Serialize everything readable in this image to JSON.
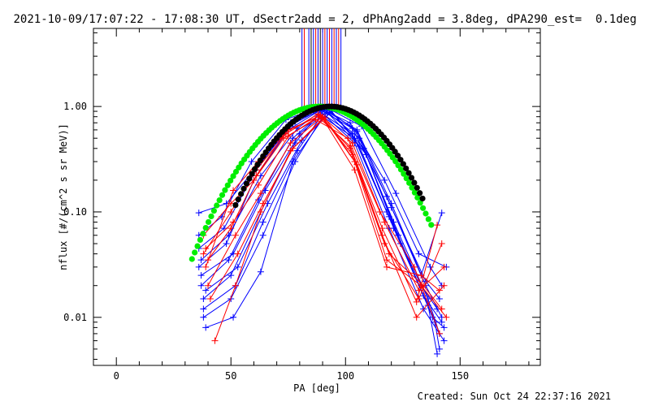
{
  "header": {
    "title": "2021-10-09/17:07:22 - 17:08:30 UT, dSectr2add = 2, dPhAng2add = 3.8deg, dPA290_est=  0.1deg"
  },
  "footer": {
    "created": "Created: Sun Oct 24 22:37:16 2021"
  },
  "chart_data": {
    "type": "line",
    "xlabel": "PA [deg]",
    "ylabel": "nflux [#/(cm^2 s sr MeV)]",
    "xlim": [
      -10,
      185
    ],
    "ylim": [
      0.0035,
      5.5
    ],
    "yscale": "log",
    "xticks": [
      0,
      50,
      100,
      150
    ],
    "xtick_labels": [
      "0",
      "50",
      "100",
      "150"
    ],
    "yticks": [
      0.01,
      0.1,
      1.0
    ],
    "ytick_labels": [
      "0.01",
      "0.10",
      "1.00"
    ],
    "grid": false,
    "colors": {
      "blue": "#0000ff",
      "red": "#ff0000",
      "green": "#00ee00",
      "black": "#000000"
    },
    "model_curves": [
      {
        "color": "#00ee00",
        "marker": "circle",
        "center": 88.5,
        "sigma": 21.5,
        "peak": 1.0,
        "x_range": [
          33,
          138
        ]
      },
      {
        "color": "#000000",
        "marker": "circle",
        "center": 93.5,
        "sigma": 20.0,
        "peak": 1.0,
        "x_range": [
          52,
          134
        ]
      }
    ],
    "vertical_lines": [
      {
        "x": 81,
        "color": "#0000ff"
      },
      {
        "x": 82,
        "color": "#ff0000"
      },
      {
        "x": 84,
        "color": "#0000ff"
      },
      {
        "x": 85,
        "color": "#000000"
      },
      {
        "x": 86,
        "color": "#0000ff"
      },
      {
        "x": 87,
        "color": "#ff0000"
      },
      {
        "x": 88,
        "color": "#0000ff"
      },
      {
        "x": 89,
        "color": "#000000"
      },
      {
        "x": 90,
        "color": "#0000ff"
      },
      {
        "x": 91,
        "color": "#ff0000"
      },
      {
        "x": 92,
        "color": "#0000ff"
      },
      {
        "x": 93,
        "color": "#ff0000"
      },
      {
        "x": 94,
        "color": "#0000ff"
      },
      {
        "x": 95,
        "color": "#ff0000"
      },
      {
        "x": 96,
        "color": "#0000ff"
      },
      {
        "x": 97,
        "color": "#ff0000"
      },
      {
        "x": 98,
        "color": "#0000ff"
      }
    ],
    "series": [
      {
        "color": "#0000ff",
        "marker": "+",
        "x": [
          36,
          48,
          60,
          75,
          90,
          105,
          120,
          135,
          142
        ],
        "y": [
          0.03,
          0.05,
          0.2,
          0.6,
          0.95,
          0.6,
          0.12,
          0.02,
          0.01
        ]
      },
      {
        "color": "#0000ff",
        "marker": "+",
        "x": [
          37,
          49,
          62,
          77,
          91,
          106,
          121,
          136,
          141
        ],
        "y": [
          0.02,
          0.035,
          0.13,
          0.5,
          0.92,
          0.5,
          0.08,
          0.015,
          0.007
        ]
      },
      {
        "color": "#0000ff",
        "marker": "+",
        "x": [
          38,
          50,
          63,
          78,
          89,
          104,
          119,
          134,
          143
        ],
        "y": [
          0.015,
          0.025,
          0.1,
          0.45,
          0.9,
          0.45,
          0.07,
          0.012,
          0.006
        ]
      },
      {
        "color": "#0000ff",
        "marker": "+",
        "x": [
          36,
          47,
          61,
          76,
          92,
          107,
          122,
          137,
          142
        ],
        "y": [
          0.045,
          0.07,
          0.25,
          0.7,
          0.97,
          0.65,
          0.15,
          0.03,
          0.02
        ]
      },
      {
        "color": "#0000ff",
        "marker": "+",
        "x": [
          38,
          52,
          64,
          79,
          90,
          103,
          118,
          133,
          140
        ],
        "y": [
          0.012,
          0.02,
          0.08,
          0.38,
          0.85,
          0.55,
          0.1,
          0.02,
          0.012
        ]
      },
      {
        "color": "#0000ff",
        "marker": "+",
        "x": [
          37,
          51,
          65,
          80,
          93,
          108,
          123,
          138,
          143
        ],
        "y": [
          0.025,
          0.04,
          0.16,
          0.55,
          0.94,
          0.4,
          0.06,
          0.01,
          0.008
        ]
      },
      {
        "color": "#0000ff",
        "marker": "+",
        "x": [
          39,
          53,
          66,
          81,
          94,
          109,
          124,
          139,
          141
        ],
        "y": [
          0.018,
          0.03,
          0.12,
          0.48,
          0.9,
          0.35,
          0.05,
          0.009,
          0.005
        ]
      },
      {
        "color": "#0000ff",
        "marker": "+",
        "x": [
          36,
          46,
          59,
          74,
          88,
          102,
          117,
          132,
          144
        ],
        "y": [
          0.06,
          0.09,
          0.3,
          0.75,
          0.98,
          0.7,
          0.2,
          0.04,
          0.03
        ]
      },
      {
        "color": "#0000ff",
        "marker": "+",
        "x": [
          38,
          50,
          64,
          78,
          90,
          104,
          119,
          134,
          142
        ],
        "y": [
          0.01,
          0.015,
          0.06,
          0.3,
          0.8,
          0.5,
          0.09,
          0.016,
          0.009
        ]
      },
      {
        "color": "#0000ff",
        "marker": "+",
        "x": [
          37,
          49,
          63,
          79,
          91,
          105,
          120,
          135,
          141
        ],
        "y": [
          0.035,
          0.06,
          0.22,
          0.62,
          0.96,
          0.58,
          0.11,
          0.022,
          0.015
        ]
      },
      {
        "color": "#0000ff",
        "marker": "+",
        "x": [
          36,
          48,
          62,
          77,
          89,
          103,
          118,
          133,
          142
        ],
        "y": [
          0.098,
          0.12,
          0.28,
          0.68,
          0.93,
          0.62,
          0.14,
          0.025,
          0.098
        ]
      },
      {
        "color": "#0000ff",
        "marker": "+",
        "x": [
          39,
          51,
          63,
          77,
          92,
          106,
          121,
          136,
          140
        ],
        "y": [
          0.008,
          0.01,
          0.027,
          0.3,
          0.88,
          0.42,
          0.07,
          0.013,
          0.0045
        ]
      },
      {
        "color": "#ff0000",
        "marker": "+",
        "x": [
          38,
          50,
          61,
          74,
          88,
          102,
          116,
          131,
          143
        ],
        "y": [
          0.04,
          0.1,
          0.25,
          0.55,
          0.85,
          0.4,
          0.06,
          0.01,
          0.02
        ]
      },
      {
        "color": "#ff0000",
        "marker": "+",
        "x": [
          39,
          51,
          62,
          75,
          89,
          103,
          117,
          132,
          142
        ],
        "y": [
          0.03,
          0.16,
          0.3,
          0.6,
          0.82,
          0.35,
          0.05,
          0.015,
          0.05
        ]
      },
      {
        "color": "#ff0000",
        "marker": "+",
        "x": [
          40,
          52,
          63,
          76,
          90,
          104,
          118,
          133,
          144
        ],
        "y": [
          0.02,
          0.06,
          0.15,
          0.45,
          0.8,
          0.3,
          0.035,
          0.02,
          0.01
        ]
      },
      {
        "color": "#ff0000",
        "marker": "+",
        "x": [
          38,
          50,
          60,
          73,
          87,
          101,
          115,
          130,
          141
        ],
        "y": [
          0.06,
          0.12,
          0.2,
          0.5,
          0.75,
          0.5,
          0.1,
          0.03,
          0.007
        ]
      },
      {
        "color": "#ff0000",
        "marker": "+",
        "x": [
          41,
          53,
          64,
          77,
          91,
          105,
          119,
          134,
          142
        ],
        "y": [
          0.015,
          0.04,
          0.12,
          0.4,
          0.78,
          0.28,
          0.04,
          0.02,
          0.012
        ]
      },
      {
        "color": "#ff0000",
        "marker": "+",
        "x": [
          39,
          51,
          62,
          75,
          89,
          103,
          117,
          132,
          143
        ],
        "y": [
          0.045,
          0.08,
          0.18,
          0.52,
          0.83,
          0.45,
          0.08,
          0.018,
          0.03
        ]
      },
      {
        "color": "#ff0000",
        "marker": "+",
        "x": [
          43,
          52,
          63,
          76,
          90,
          104,
          118,
          133,
          141
        ],
        "y": [
          0.006,
          0.02,
          0.1,
          0.38,
          0.77,
          0.25,
          0.03,
          0.025,
          0.018
        ]
      },
      {
        "color": "#ff0000",
        "marker": "+",
        "x": [
          40,
          50,
          61,
          74,
          88,
          102,
          116,
          131,
          140
        ],
        "y": [
          0.035,
          0.07,
          0.22,
          0.58,
          0.8,
          0.42,
          0.07,
          0.014,
          0.075
        ]
      }
    ]
  }
}
